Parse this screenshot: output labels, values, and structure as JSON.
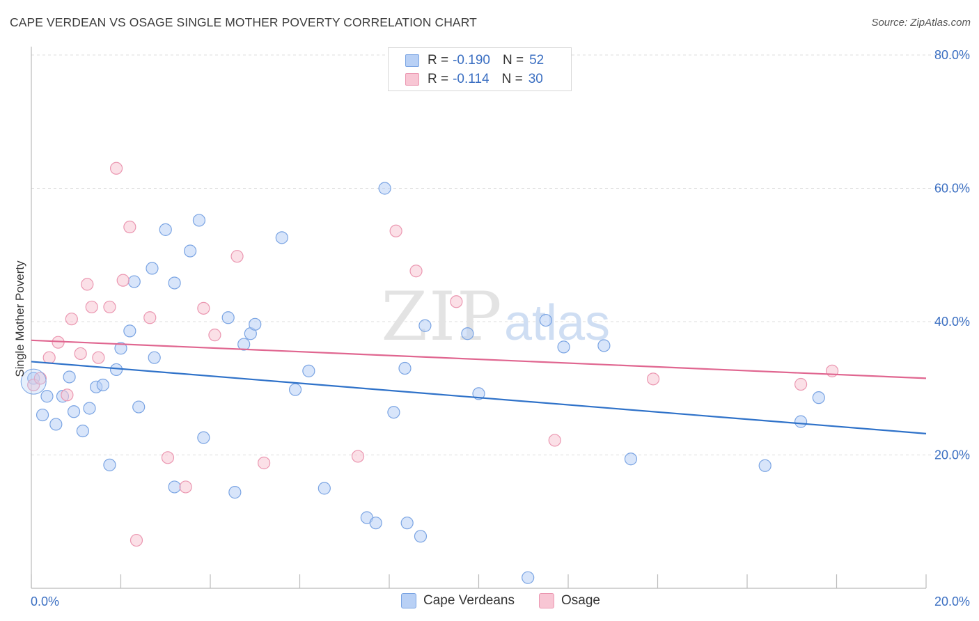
{
  "title": "CAPE VERDEAN VS OSAGE SINGLE MOTHER POVERTY CORRELATION CHART",
  "source": "Source: ZipAtlas.com",
  "watermark": {
    "zip": "ZIP",
    "atlas": "atlas"
  },
  "legend": {
    "r_label": "R = ",
    "n_label": "N = ",
    "entries": [
      {
        "r": "-0.190",
        "n": "52",
        "fill": "#b8d0f5",
        "stroke": "#7aa4e3"
      },
      {
        "r": "-0.114",
        "n": "30",
        "fill": "#f8c6d4",
        "stroke": "#eb97b1"
      }
    ]
  },
  "chart_data": {
    "type": "scatter",
    "ylabel": "Single Mother Poverty",
    "xlim": [
      0,
      20
    ],
    "ylim": [
      0,
      80
    ],
    "x_ticks": [
      "0.0%",
      "20.0%"
    ],
    "y_ticks": [
      {
        "v": 20,
        "label": "20.0%"
      },
      {
        "v": 40,
        "label": "40.0%"
      },
      {
        "v": 60,
        "label": "60.0%"
      },
      {
        "v": 80,
        "label": "80.0%"
      }
    ],
    "grid": true,
    "series": [
      {
        "name": "Cape Verdeans",
        "color": "#7aa4e3",
        "fill": "#b8d0f5",
        "line_color": "#2f72c9",
        "trend": [
          [
            0,
            34.0
          ],
          [
            20,
            23.2
          ]
        ],
        "points": [
          [
            0.05,
            31.5
          ],
          [
            0.25,
            26.0
          ],
          [
            0.35,
            28.8
          ],
          [
            0.55,
            24.6
          ],
          [
            0.7,
            28.8
          ],
          [
            0.85,
            31.7
          ],
          [
            0.95,
            26.5
          ],
          [
            1.15,
            23.6
          ],
          [
            1.3,
            27.0
          ],
          [
            1.45,
            30.2
          ],
          [
            1.6,
            30.5
          ],
          [
            1.75,
            18.5
          ],
          [
            1.9,
            32.8
          ],
          [
            2.0,
            36.0
          ],
          [
            2.2,
            38.6
          ],
          [
            2.3,
            46.0
          ],
          [
            2.4,
            27.2
          ],
          [
            2.7,
            48.0
          ],
          [
            2.75,
            34.6
          ],
          [
            3.0,
            53.8
          ],
          [
            3.2,
            45.8
          ],
          [
            3.2,
            15.2
          ],
          [
            3.55,
            50.6
          ],
          [
            3.75,
            55.2
          ],
          [
            3.85,
            22.6
          ],
          [
            4.4,
            40.6
          ],
          [
            4.55,
            14.4
          ],
          [
            4.75,
            36.6
          ],
          [
            4.9,
            38.2
          ],
          [
            5.0,
            39.6
          ],
          [
            5.6,
            52.6
          ],
          [
            5.9,
            29.8
          ],
          [
            6.2,
            32.6
          ],
          [
            6.55,
            15.0
          ],
          [
            7.5,
            10.6
          ],
          [
            7.7,
            9.8
          ],
          [
            7.9,
            60.0
          ],
          [
            8.1,
            26.4
          ],
          [
            8.35,
            33.0
          ],
          [
            8.4,
            9.8
          ],
          [
            8.7,
            7.8
          ],
          [
            8.8,
            39.4
          ],
          [
            9.75,
            38.2
          ],
          [
            10.0,
            29.2
          ],
          [
            11.1,
            1.6
          ],
          [
            11.5,
            40.2
          ],
          [
            11.9,
            36.2
          ],
          [
            12.8,
            36.4
          ],
          [
            13.4,
            19.4
          ],
          [
            16.4,
            18.4
          ],
          [
            17.2,
            25.0
          ],
          [
            17.6,
            28.6
          ]
        ]
      },
      {
        "name": "Osage",
        "color": "#eb97b1",
        "fill": "#f8c6d4",
        "line_color": "#e06690",
        "trend": [
          [
            0,
            37.2
          ],
          [
            20,
            31.5
          ]
        ],
        "points": [
          [
            0.05,
            30.5
          ],
          [
            0.2,
            31.5
          ],
          [
            0.4,
            34.6
          ],
          [
            0.6,
            36.9
          ],
          [
            0.8,
            29.0
          ],
          [
            0.9,
            40.4
          ],
          [
            1.1,
            35.2
          ],
          [
            1.25,
            45.6
          ],
          [
            1.35,
            42.2
          ],
          [
            1.5,
            34.6
          ],
          [
            1.75,
            42.2
          ],
          [
            1.9,
            63.0
          ],
          [
            2.05,
            46.2
          ],
          [
            2.2,
            54.2
          ],
          [
            2.35,
            7.2
          ],
          [
            2.65,
            40.6
          ],
          [
            3.05,
            19.6
          ],
          [
            3.45,
            15.2
          ],
          [
            3.85,
            42.0
          ],
          [
            4.1,
            38.0
          ],
          [
            4.6,
            49.8
          ],
          [
            5.2,
            18.8
          ],
          [
            7.3,
            19.8
          ],
          [
            8.15,
            53.6
          ],
          [
            8.6,
            47.6
          ],
          [
            9.5,
            43.0
          ],
          [
            11.7,
            22.2
          ],
          [
            13.9,
            31.4
          ],
          [
            17.2,
            30.6
          ],
          [
            17.9,
            32.6
          ]
        ]
      }
    ]
  }
}
